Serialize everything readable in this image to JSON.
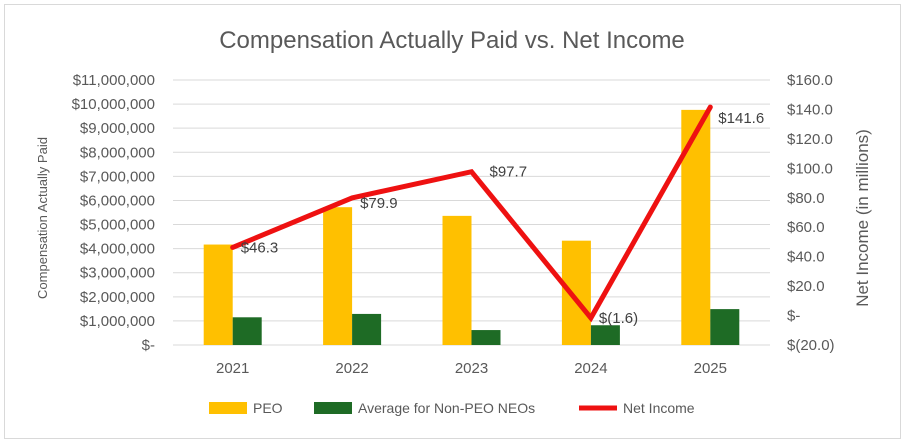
{
  "chart_data": {
    "type": "bar",
    "title": "Compensation Actually Paid vs. Net Income",
    "ylabel": "Compensation Actually Paid",
    "y2label": "Net Income (in millions)",
    "categories": [
      "2021",
      "2022",
      "2023",
      "2024",
      "2025"
    ],
    "ylim": [
      0,
      11000000
    ],
    "y2lim": [
      -20,
      160
    ],
    "yticks": [
      0,
      1000000,
      2000000,
      3000000,
      4000000,
      5000000,
      6000000,
      7000000,
      8000000,
      9000000,
      10000000,
      11000000
    ],
    "ytick_labels": [
      "$-",
      "$1,000,000",
      "$2,000,000",
      "$3,000,000",
      "$4,000,000",
      "$5,000,000",
      "$6,000,000",
      "$7,000,000",
      "$8,000,000",
      "$9,000,000",
      "$10,000,000",
      "$11,000,000"
    ],
    "y2ticks": [
      -20,
      0,
      20,
      40,
      60,
      80,
      100,
      120,
      140,
      160
    ],
    "y2tick_labels": [
      "$(20.0)",
      "$-",
      "$20.0",
      "$40.0",
      "$60.0",
      "$80.0",
      "$100.0",
      "$120.0",
      "$140.0",
      "$160.0"
    ],
    "grid": true,
    "legend": "bottom",
    "series": [
      {
        "name": "PEO",
        "type": "bar",
        "axis": "left",
        "color": "#FFC000",
        "values": [
          4170000,
          5720000,
          5360000,
          4330000,
          9760000
        ]
      },
      {
        "name": "Average for Non-PEO NEOs",
        "type": "bar",
        "axis": "left",
        "color": "#1E6B25",
        "values": [
          1150000,
          1290000,
          620000,
          820000,
          1490000
        ]
      },
      {
        "name": "Net Income",
        "type": "line",
        "axis": "right",
        "color": "#EE1111",
        "values": [
          46.3,
          79.9,
          97.7,
          -1.6,
          141.6
        ],
        "data_labels": [
          "$46.3",
          "$79.9",
          "$97.7",
          "$(1.6)",
          "$141.6"
        ]
      }
    ]
  }
}
